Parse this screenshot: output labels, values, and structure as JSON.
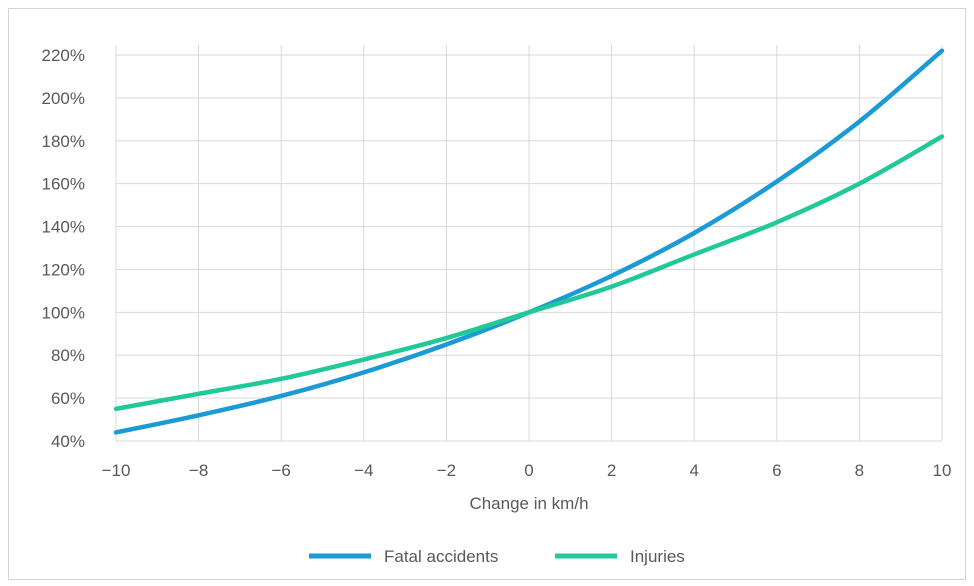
{
  "chart_data": {
    "type": "line",
    "title": "",
    "xlabel": "Change in km/h",
    "ylabel": "",
    "xlim": [
      -10,
      10
    ],
    "ylim": [
      40,
      220
    ],
    "x_ticks": [
      -10,
      -8,
      -6,
      -4,
      -2,
      0,
      2,
      4,
      6,
      8,
      10
    ],
    "y_ticks": [
      40,
      60,
      80,
      100,
      120,
      140,
      160,
      180,
      200,
      220
    ],
    "y_tick_labels": [
      "40%",
      "60%",
      "80%",
      "100%",
      "120%",
      "140%",
      "160%",
      "180%",
      "200%",
      "220%"
    ],
    "grid": "vertical and horizontal",
    "legend_position": "bottom",
    "x": [
      -10,
      -8,
      -6,
      -4,
      -2,
      0,
      2,
      4,
      6,
      8,
      10
    ],
    "series": [
      {
        "name": "Fatal accidents",
        "color": "#1b9ad6",
        "values": [
          44,
          52,
          61,
          72,
          85,
          100,
          117,
          137,
          161,
          189,
          222
        ]
      },
      {
        "name": "Injuries",
        "color": "#20c997",
        "values": [
          55,
          62,
          69,
          78,
          88,
          100,
          112,
          127,
          142,
          160,
          182
        ]
      }
    ]
  }
}
